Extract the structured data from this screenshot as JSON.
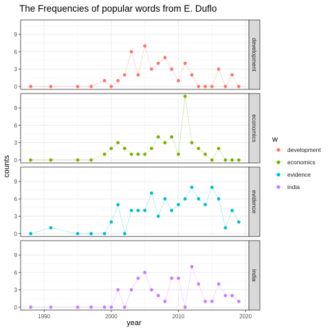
{
  "chart_data": {
    "type": "line",
    "title": "The Frequencies of popular words from E. Duflo",
    "xlabel": "year",
    "ylabel": "counts",
    "xlim": [
      1986.5,
      2020.5
    ],
    "ylim": [
      -0.5,
      11.5
    ],
    "x_ticks": [
      1990,
      2000,
      2010,
      2020
    ],
    "y_ticks": [
      0,
      3,
      6,
      9
    ],
    "grid": true,
    "facet_by": "w",
    "legend": {
      "title": "w",
      "placement": "right"
    },
    "series": [
      {
        "name": "development",
        "color": "#F8766D",
        "x": [
          1988,
          1991,
          1995,
          1997,
          1999,
          2000,
          2001,
          2002,
          2003,
          2004,
          2005,
          2006,
          2007,
          2008,
          2009,
          2010,
          2011,
          2012,
          2013,
          2014,
          2015,
          2016,
          2017,
          2018,
          2019
        ],
        "y": [
          0,
          0,
          0,
          0,
          1,
          0,
          1,
          2,
          6,
          2,
          7,
          3,
          4,
          5,
          3,
          1,
          4,
          2,
          0,
          0,
          0,
          3,
          0,
          2,
          0
        ]
      },
      {
        "name": "economics",
        "color": "#7CAE00",
        "x": [
          1988,
          1991,
          1995,
          1997,
          1999,
          2000,
          2001,
          2002,
          2003,
          2004,
          2005,
          2006,
          2007,
          2008,
          2009,
          2010,
          2011,
          2012,
          2013,
          2014,
          2015,
          2016,
          2017,
          2018,
          2019
        ],
        "y": [
          0,
          0,
          0,
          0,
          1,
          2,
          3,
          2,
          1,
          1,
          1,
          2,
          4,
          3,
          4,
          1,
          11,
          3,
          2,
          1,
          0,
          2,
          0,
          0,
          0
        ]
      },
      {
        "name": "evidence",
        "color": "#00BFC4",
        "x": [
          1988,
          1991,
          1995,
          1997,
          1999,
          2000,
          2001,
          2002,
          2003,
          2004,
          2005,
          2006,
          2007,
          2008,
          2009,
          2010,
          2011,
          2012,
          2013,
          2014,
          2015,
          2016,
          2017,
          2018,
          2019
        ],
        "y": [
          0,
          1,
          0,
          0,
          0,
          2,
          5,
          0,
          4,
          4,
          4,
          7,
          3,
          6,
          4,
          5,
          6,
          8,
          6,
          5,
          8,
          6,
          1,
          4,
          2
        ]
      },
      {
        "name": "india",
        "color": "#C77CFF",
        "x": [
          1988,
          1991,
          1995,
          1997,
          1999,
          2000,
          2001,
          2002,
          2003,
          2004,
          2005,
          2006,
          2007,
          2008,
          2009,
          2010,
          2011,
          2012,
          2013,
          2014,
          2015,
          2016,
          2017,
          2018,
          2019
        ],
        "y": [
          0,
          0,
          0,
          0,
          0,
          0,
          3,
          0,
          3,
          5,
          6,
          3,
          2,
          1,
          5,
          5,
          0,
          7,
          4,
          1,
          1,
          4,
          2,
          2,
          1
        ]
      }
    ]
  }
}
